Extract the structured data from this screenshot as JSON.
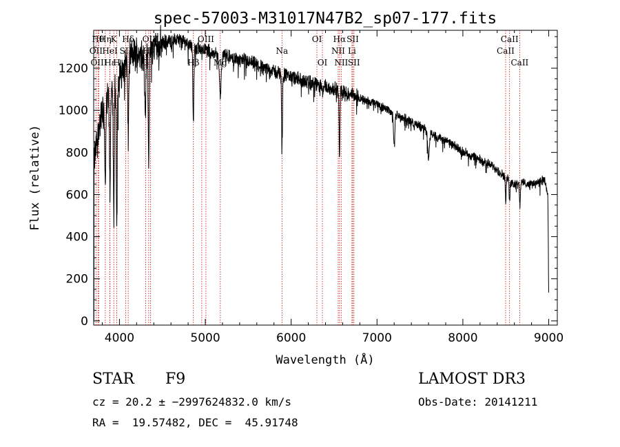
{
  "chart_data": {
    "type": "line",
    "title": "spec-57003-M31017N47B2_sp07-177.fits",
    "xlabel": "Wavelength (Å)",
    "ylabel": "Flux (relative)",
    "xlim": [
      3700,
      9100
    ],
    "ylim": [
      -20,
      1380
    ],
    "x_ticks": [
      4000,
      5000,
      6000,
      7000,
      8000,
      9000
    ],
    "y_ticks": [
      0,
      200,
      400,
      600,
      800,
      1000,
      1200
    ],
    "continuum": [
      [
        3700,
        0
      ],
      [
        3705,
        760
      ],
      [
        3740,
        860
      ],
      [
        3780,
        960
      ],
      [
        3830,
        1020
      ],
      [
        3880,
        1080
      ],
      [
        3950,
        1100
      ],
      [
        4020,
        1180
      ],
      [
        4100,
        1250
      ],
      [
        4200,
        1270
      ],
      [
        4300,
        1280
      ],
      [
        4400,
        1300
      ],
      [
        4500,
        1320
      ],
      [
        4600,
        1330
      ],
      [
        4700,
        1335
      ],
      [
        4800,
        1320
      ],
      [
        4900,
        1300
      ],
      [
        5000,
        1290
      ],
      [
        5100,
        1270
      ],
      [
        5200,
        1260
      ],
      [
        5300,
        1250
      ],
      [
        5400,
        1240
      ],
      [
        5500,
        1230
      ],
      [
        5600,
        1215
      ],
      [
        5700,
        1200
      ],
      [
        5800,
        1185
      ],
      [
        5900,
        1170
      ],
      [
        6000,
        1160
      ],
      [
        6100,
        1145
      ],
      [
        6200,
        1130
      ],
      [
        6300,
        1120
      ],
      [
        6400,
        1110
      ],
      [
        6500,
        1100
      ],
      [
        6600,
        1090
      ],
      [
        6700,
        1075
      ],
      [
        6800,
        1060
      ],
      [
        6900,
        1040
      ],
      [
        7000,
        1030
      ],
      [
        7100,
        1010
      ],
      [
        7200,
        985
      ],
      [
        7300,
        965
      ],
      [
        7400,
        945
      ],
      [
        7500,
        925
      ],
      [
        7600,
        900
      ],
      [
        7700,
        875
      ],
      [
        7800,
        855
      ],
      [
        7900,
        830
      ],
      [
        8000,
        805
      ],
      [
        8100,
        785
      ],
      [
        8200,
        765
      ],
      [
        8300,
        745
      ],
      [
        8400,
        720
      ],
      [
        8500,
        680
      ],
      [
        8600,
        650
      ],
      [
        8700,
        655
      ],
      [
        8800,
        650
      ],
      [
        8900,
        660
      ],
      [
        8950,
        670
      ],
      [
        8990,
        600
      ],
      [
        9000,
        120
      ]
    ],
    "absorption_features": [
      {
        "wavelength": 3835,
        "depth": 400,
        "width": 6
      },
      {
        "wavelength": 3889,
        "depth": 450,
        "width": 6
      },
      {
        "wavelength": 3934,
        "depth": 650,
        "width": 5
      },
      {
        "wavelength": 3969,
        "depth": 700,
        "width": 5
      },
      {
        "wavelength": 4102,
        "depth": 380,
        "width": 6
      },
      {
        "wavelength": 4300,
        "depth": 300,
        "width": 8
      },
      {
        "wavelength": 4341,
        "depth": 500,
        "width": 6
      },
      {
        "wavelength": 4861,
        "depth": 370,
        "width": 6
      },
      {
        "wavelength": 5175,
        "depth": 200,
        "width": 10
      },
      {
        "wavelength": 5893,
        "depth": 320,
        "width": 5
      },
      {
        "wavelength": 6563,
        "depth": 330,
        "width": 5
      },
      {
        "wavelength": 7200,
        "depth": 150,
        "width": 8
      },
      {
        "wavelength": 7600,
        "depth": 130,
        "width": 10
      },
      {
        "wavelength": 8500,
        "depth": 110,
        "width": 5
      },
      {
        "wavelength": 8544,
        "depth": 100,
        "width": 5
      },
      {
        "wavelength": 8664,
        "depth": 100,
        "width": 5
      }
    ],
    "line_markers": [
      {
        "label": "Hθ",
        "wavelength": 3750,
        "row": 0
      },
      {
        "label": "OII",
        "wavelength": 3727,
        "row": 1
      },
      {
        "label": "OIII",
        "wavelength": 3760,
        "row": 2
      },
      {
        "label": "Hη",
        "wavelength": 3835,
        "row": 0
      },
      {
        "label": "HeI",
        "wavelength": 3889,
        "row": 1
      },
      {
        "label": "Hε",
        "wavelength": 3890,
        "row": 2
      },
      {
        "label": "K",
        "wavelength": 3934,
        "row": 0
      },
      {
        "label": "H",
        "wavelength": 3969,
        "row": 2
      },
      {
        "label": "Hδ",
        "wavelength": 4102,
        "row": 0
      },
      {
        "label": "SII",
        "wavelength": 4072,
        "row": 1
      },
      {
        "label": "OIII",
        "wavelength": 4363,
        "row": 0
      },
      {
        "label": "Hγ",
        "wavelength": 4341,
        "row": 1
      },
      {
        "label": "G",
        "wavelength": 4305,
        "row": 2
      },
      {
        "label": "OIII",
        "wavelength": 5007,
        "row": 0
      },
      {
        "label": "OIII",
        "wavelength": 4959,
        "row": 1
      },
      {
        "label": "Hβ",
        "wavelength": 4861,
        "row": 2
      },
      {
        "label": "Mg",
        "wavelength": 5175,
        "row": 2
      },
      {
        "label": "Na",
        "wavelength": 5893,
        "row": 1
      },
      {
        "label": "OI",
        "wavelength": 6300,
        "row": 0
      },
      {
        "label": "OI",
        "wavelength": 6364,
        "row": 2
      },
      {
        "label": "Hα",
        "wavelength": 6563,
        "row": 0
      },
      {
        "label": "NII",
        "wavelength": 6548,
        "row": 1
      },
      {
        "label": "NII",
        "wavelength": 6583,
        "row": 2
      },
      {
        "label": "SII",
        "wavelength": 6717,
        "row": 0
      },
      {
        "label": "Li",
        "wavelength": 6708,
        "row": 1
      },
      {
        "label": "SII",
        "wavelength": 6731,
        "row": 2
      },
      {
        "label": "CaII",
        "wavelength": 8544,
        "row": 0
      },
      {
        "label": "CaII",
        "wavelength": 8498,
        "row": 1
      },
      {
        "label": "CaII",
        "wavelength": 8662,
        "row": 2
      }
    ],
    "colors": {
      "spectrum": "#000000",
      "markers": "#cc0000",
      "axes": "#000000"
    }
  },
  "info": {
    "object_class": "STAR",
    "subclass": "F9",
    "data_release": "LAMOST DR3",
    "redshift_line": "cz = 20.2 ± −2997624832.0 km/s",
    "obs_date": "Obs-Date: 20141211",
    "coords": "RA =  19.57482, DEC =  45.91748"
  }
}
